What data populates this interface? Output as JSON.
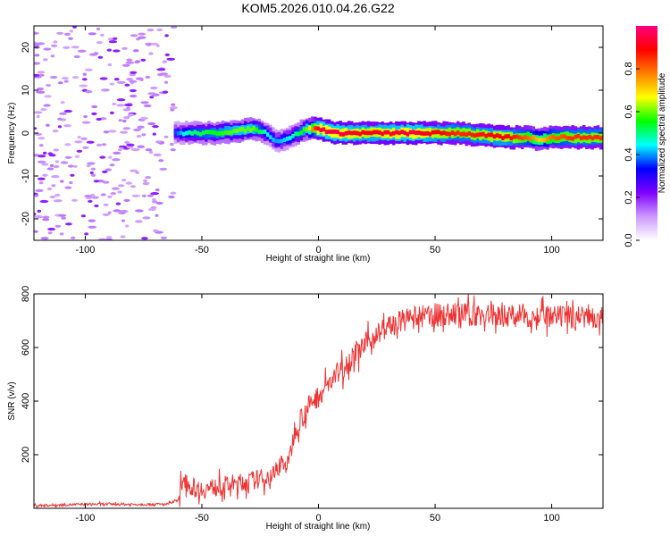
{
  "title": "KOM5.2026.010.04.26.G22",
  "chart_data": [
    {
      "type": "heatmap",
      "xlabel": "Height of straight line (km)",
      "ylabel": "Frequency (Hz)",
      "xlim": [
        -122,
        122
      ],
      "ylim": [
        -25,
        25
      ],
      "xticks": [
        -100,
        -50,
        0,
        50,
        100
      ],
      "yticks": [
        -20,
        -10,
        0,
        10,
        20
      ],
      "xtick_labels": [
        "-100",
        "-50",
        "0",
        "50",
        "100"
      ],
      "ytick_labels": [
        "-20",
        "-10",
        "0",
        "10",
        "20"
      ],
      "ridge_x": [
        -62,
        -55,
        -45,
        -35,
        -28,
        -22,
        -18,
        -12,
        -5,
        0,
        8,
        20,
        40,
        60,
        80,
        90,
        95,
        100,
        110,
        122
      ],
      "ridge_y": [
        0,
        0,
        0,
        0.5,
        1,
        0,
        -2,
        -1,
        1,
        1,
        0,
        0,
        0,
        0,
        -1,
        -1,
        -1.5,
        -1,
        -1,
        -1
      ],
      "ridge_amplitude": [
        0.35,
        0.5,
        0.55,
        0.6,
        0.6,
        0.45,
        0.4,
        0.45,
        0.6,
        0.95,
        0.95,
        0.9,
        0.95,
        0.85,
        0.9,
        0.8,
        0.7,
        0.8,
        0.85,
        0.85
      ],
      "noise_region_x": [
        -122,
        -62
      ],
      "colorbar": {
        "label": "Normalized spectral amplitude",
        "range": [
          0,
          1
        ],
        "ticks": [
          0.0,
          0.2,
          0.4,
          0.6,
          0.8
        ],
        "tick_labels": [
          "0.0",
          "0.2",
          "0.4",
          "0.6",
          "0.8"
        ],
        "colors": [
          "#ffffff",
          "#cc99ff",
          "#7f00ff",
          "#0000ff",
          "#00ffff",
          "#00ff00",
          "#ffff00",
          "#ff7f00",
          "#ff0000",
          "#ff007f"
        ]
      }
    },
    {
      "type": "line",
      "xlabel": "Height of straight line (km)",
      "ylabel": "SNR (v/v)",
      "xlim": [
        -122,
        122
      ],
      "ylim": [
        0,
        800
      ],
      "xticks": [
        -100,
        -50,
        0,
        50,
        100
      ],
      "yticks": [
        200,
        400,
        600,
        800
      ],
      "xtick_labels": [
        "-100",
        "-50",
        "0",
        "50",
        "100"
      ],
      "ytick_labels": [
        "200",
        "400",
        "600",
        "800"
      ],
      "color": "#ee3333",
      "x": [
        -122,
        -100,
        -80,
        -65,
        -60,
        -58,
        -55,
        -50,
        -40,
        -30,
        -20,
        -16,
        -13,
        -10,
        -5,
        0,
        5,
        10,
        15,
        20,
        25,
        30,
        40,
        50,
        60,
        70,
        80,
        90,
        100,
        110,
        122
      ],
      "y": [
        10,
        15,
        15,
        15,
        30,
        120,
        80,
        70,
        85,
        100,
        120,
        170,
        160,
        300,
        370,
        420,
        470,
        520,
        570,
        610,
        650,
        680,
        710,
        720,
        725,
        720,
        720,
        720,
        710,
        715,
        720
      ]
    }
  ]
}
